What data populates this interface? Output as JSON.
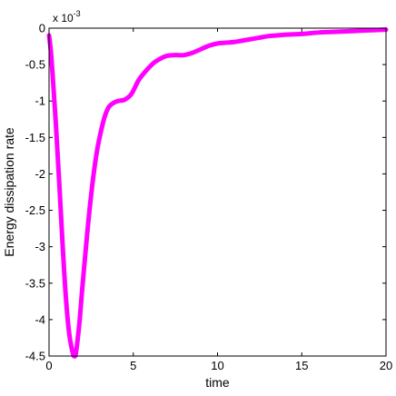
{
  "chart_data": {
    "type": "line",
    "xlabel": "time",
    "ylabel": "Energy dissipation rate",
    "exponent": {
      "base": "x 10",
      "power": "-3"
    },
    "xlim": [
      0,
      20
    ],
    "ylim": [
      -4.5,
      0
    ],
    "xticks": [
      0,
      5,
      10,
      15,
      20
    ],
    "xtick_labels": [
      "0",
      "5",
      "10",
      "15",
      "20"
    ],
    "yticks": [
      0,
      -0.5,
      -1,
      -1.5,
      -2,
      -2.5,
      -3,
      -3.5,
      -4,
      -4.5
    ],
    "ytick_labels": [
      "0",
      "-0.5",
      "-1",
      "-1.5",
      "-2",
      "-2.5",
      "-3",
      "-3.5",
      "-4",
      "-4.5"
    ],
    "grid": false,
    "line_color": "#ff00ff",
    "series": [
      {
        "x": [
          0,
          0.1,
          0.2,
          0.4,
          0.6,
          0.8,
          1.0,
          1.2,
          1.4,
          1.5,
          1.6,
          1.8,
          2.0,
          2.4,
          2.8,
          3.2,
          3.5,
          3.8,
          4.1,
          4.5,
          4.9,
          5.3,
          5.7,
          6.2,
          6.6,
          7.0,
          7.5,
          8.0,
          8.5,
          9.0,
          9.5,
          10.0,
          10.5,
          11.0,
          11.5,
          12.0,
          12.5,
          13.0,
          13.5,
          14.0,
          15.0,
          16.0,
          17.0,
          18.0,
          19.0,
          20.0
        ],
        "y": [
          -0.1,
          -0.3,
          -0.6,
          -1.3,
          -2.1,
          -2.95,
          -3.7,
          -4.2,
          -4.45,
          -4.5,
          -4.45,
          -4.05,
          -3.5,
          -2.5,
          -1.75,
          -1.3,
          -1.1,
          -1.03,
          -1.0,
          -0.98,
          -0.9,
          -0.72,
          -0.6,
          -0.48,
          -0.42,
          -0.38,
          -0.37,
          -0.37,
          -0.34,
          -0.29,
          -0.24,
          -0.21,
          -0.2,
          -0.19,
          -0.17,
          -0.15,
          -0.13,
          -0.11,
          -0.1,
          -0.09,
          -0.08,
          -0.06,
          -0.05,
          -0.04,
          -0.03,
          -0.02
        ]
      }
    ]
  }
}
